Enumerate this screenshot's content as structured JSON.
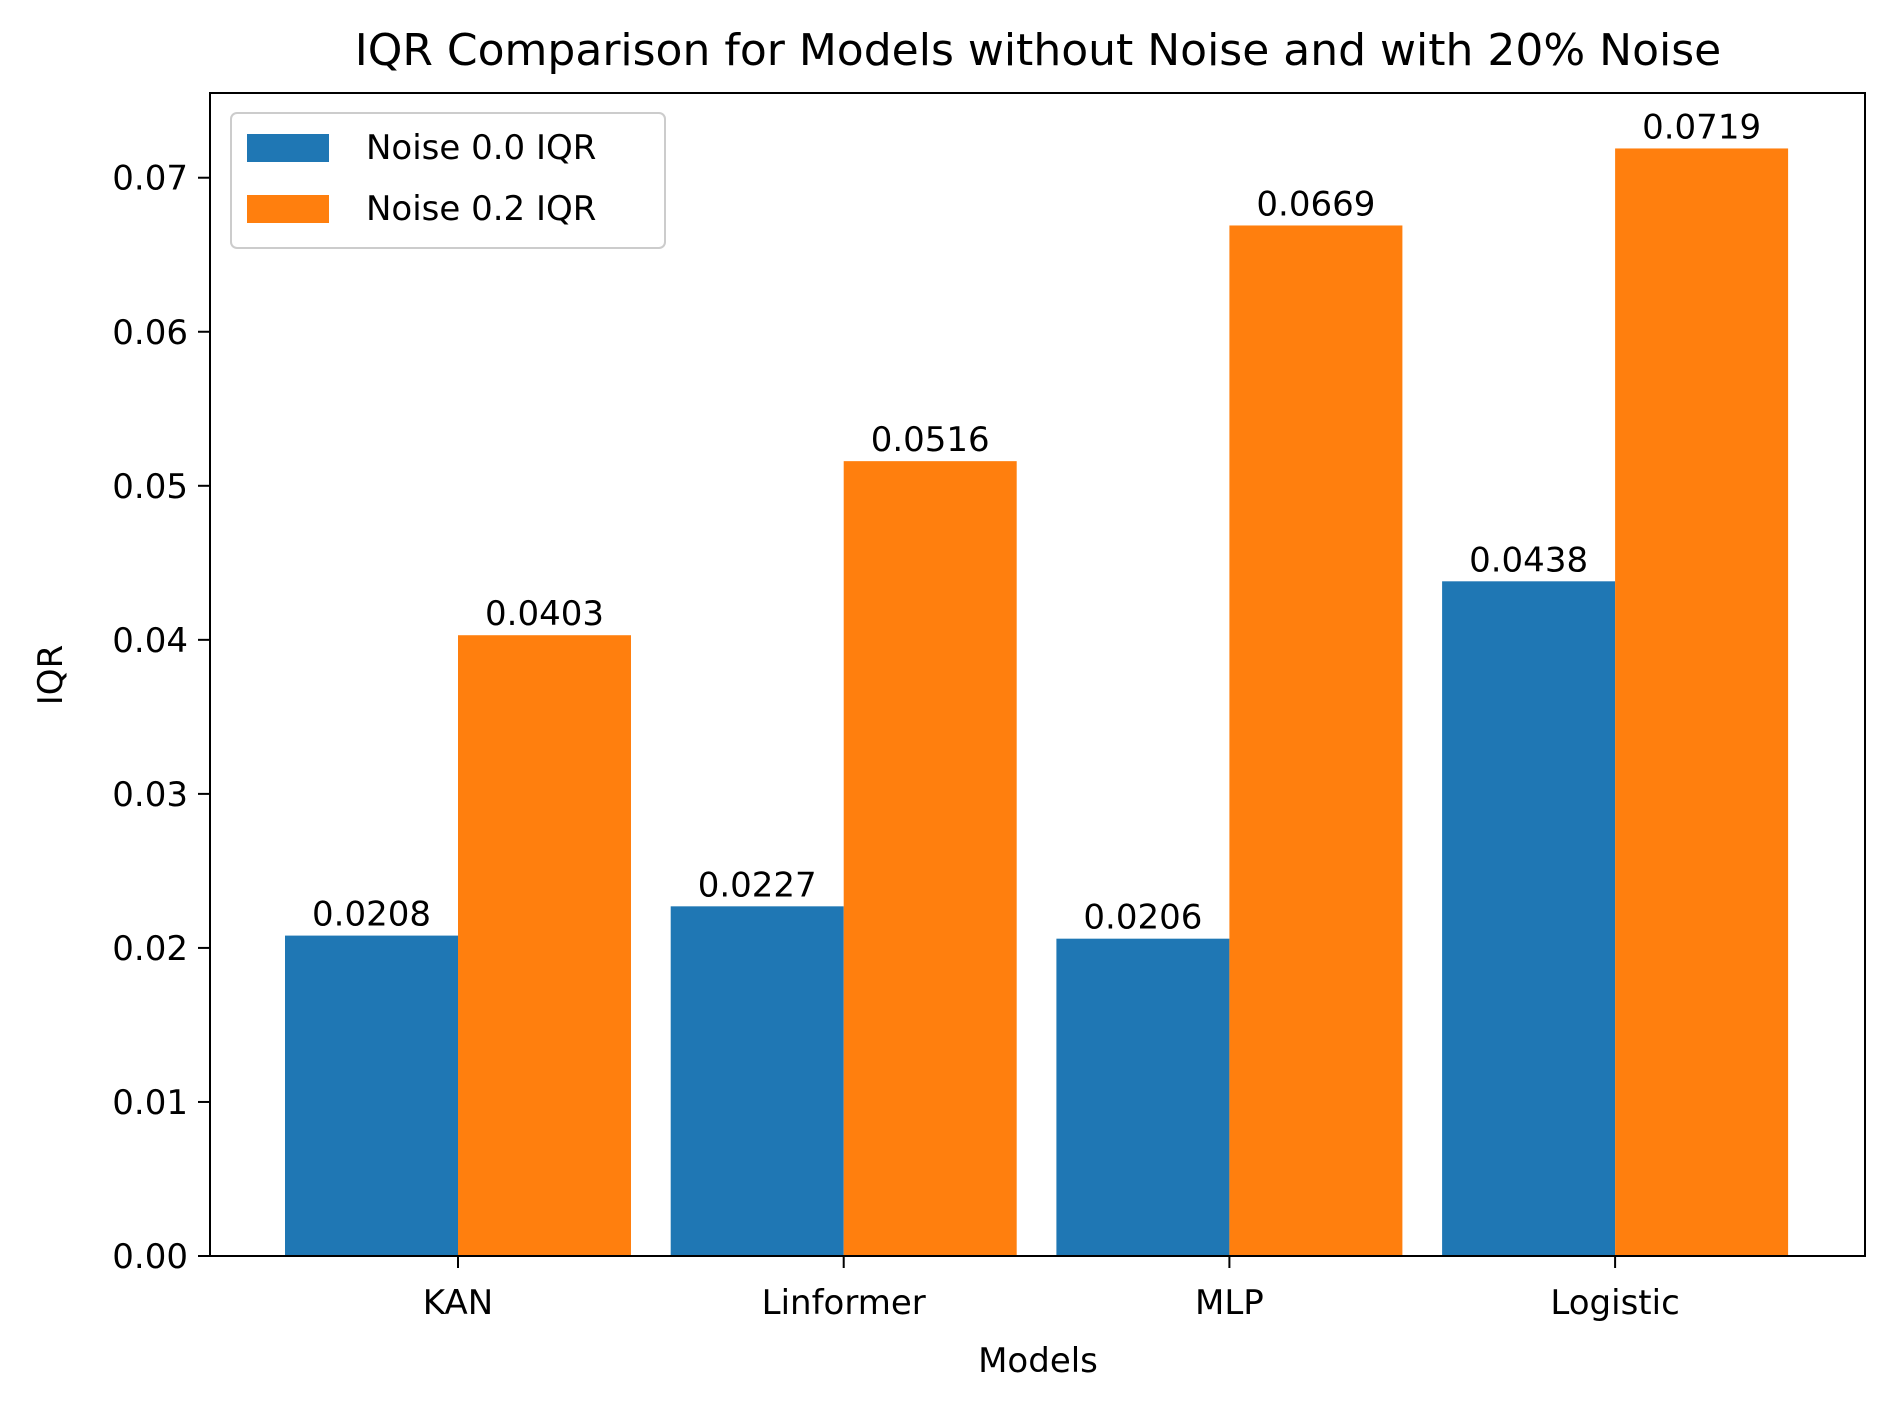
{
  "chart_data": {
    "type": "bar",
    "title": "IQR Comparison for Models without Noise and with 20% Noise",
    "xlabel": "Models",
    "ylabel": "IQR",
    "categories": [
      "KAN",
      "Linformer",
      "MLP",
      "Logistic"
    ],
    "series": [
      {
        "name": "Noise 0.0 IQR",
        "color": "#1f77b4",
        "values": [
          0.0208,
          0.0227,
          0.0206,
          0.0438
        ],
        "labels": [
          "0.0208",
          "0.0227",
          "0.0206",
          "0.0438"
        ]
      },
      {
        "name": "Noise 0.2 IQR",
        "color": "#ff7f0e",
        "values": [
          0.0403,
          0.0516,
          0.0669,
          0.0719
        ],
        "labels": [
          "0.0403",
          "0.0516",
          "0.0669",
          "0.0719"
        ]
      }
    ],
    "ylim": [
      0,
      0.0755
    ],
    "yticks": [
      0.0,
      0.01,
      0.02,
      0.03,
      0.04,
      0.05,
      0.06,
      0.07
    ],
    "ytick_labels": [
      "0.00",
      "0.01",
      "0.02",
      "0.03",
      "0.04",
      "0.05",
      "0.06",
      "0.07"
    ],
    "legend_position": "top-left",
    "grid": false
  }
}
